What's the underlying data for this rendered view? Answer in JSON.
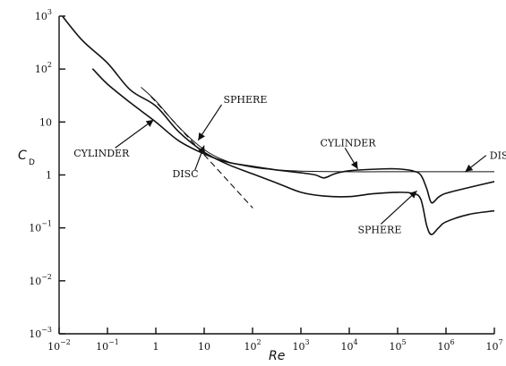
{
  "chart_data": {
    "type": "line",
    "xscale": "log",
    "yscale": "log",
    "xlim": [
      0.01,
      10000000
    ],
    "ylim": [
      0.001,
      1000
    ],
    "grid": false,
    "xlabel": "Re",
    "ylabel": "C",
    "ylabel_sub": "D",
    "x_ticks": [
      {
        "value": 0.01,
        "base": "10",
        "exp": "−2"
      },
      {
        "value": 0.1,
        "base": "10",
        "exp": "−1"
      },
      {
        "value": 1,
        "base": "1",
        "exp": ""
      },
      {
        "value": 10,
        "base": "10",
        "exp": ""
      },
      {
        "value": 100,
        "base": "10",
        "exp": "2"
      },
      {
        "value": 1000,
        "base": "10",
        "exp": "3"
      },
      {
        "value": 10000,
        "base": "10",
        "exp": "4"
      },
      {
        "value": 100000,
        "base": "10",
        "exp": "5"
      },
      {
        "value": 1000000,
        "base": "10",
        "exp": "6"
      },
      {
        "value": 10000000,
        "base": "10",
        "exp": "7"
      }
    ],
    "y_ticks": [
      {
        "value": 1000,
        "base": "10",
        "exp": "3"
      },
      {
        "value": 100,
        "base": "10",
        "exp": "2"
      },
      {
        "value": 10,
        "base": "10",
        "exp": ""
      },
      {
        "value": 1,
        "base": "1",
        "exp": ""
      },
      {
        "value": 0.1,
        "base": "10",
        "exp": "−1"
      },
      {
        "value": 0.01,
        "base": "10",
        "exp": "−2"
      },
      {
        "value": 0.001,
        "base": "10",
        "exp": "−3"
      }
    ],
    "series": [
      {
        "key": "sphere",
        "points": [
          [
            0.01,
            1200
          ],
          [
            0.03,
            350
          ],
          [
            0.1,
            130
          ],
          [
            0.3,
            40
          ],
          [
            1,
            20
          ],
          [
            3,
            6.5
          ],
          [
            10,
            2.7
          ],
          [
            30,
            1.6
          ],
          [
            100,
            1.05
          ],
          [
            300,
            0.72
          ],
          [
            1000,
            0.47
          ],
          [
            3000,
            0.4
          ],
          [
            10000,
            0.39
          ],
          [
            30000,
            0.44
          ],
          [
            100000,
            0.47
          ],
          [
            200000,
            0.45
          ],
          [
            300000,
            0.35
          ],
          [
            400000,
            0.11
          ],
          [
            500000,
            0.075
          ],
          [
            700000,
            0.1
          ],
          [
            1000000,
            0.13
          ],
          [
            3000000,
            0.18
          ],
          [
            10000000,
            0.21
          ]
        ]
      },
      {
        "key": "cylinder",
        "points": [
          [
            0.05,
            100
          ],
          [
            0.1,
            52
          ],
          [
            0.3,
            23
          ],
          [
            1,
            10
          ],
          [
            3,
            4.4
          ],
          [
            10,
            2.5
          ],
          [
            30,
            1.75
          ],
          [
            100,
            1.45
          ],
          [
            300,
            1.25
          ],
          [
            1000,
            1.1
          ],
          [
            2000,
            1.0
          ],
          [
            3000,
            0.88
          ],
          [
            5000,
            1.05
          ],
          [
            10000,
            1.2
          ],
          [
            50000,
            1.3
          ],
          [
            100000,
            1.3
          ],
          [
            200000,
            1.2
          ],
          [
            300000,
            1.0
          ],
          [
            400000,
            0.55
          ],
          [
            500000,
            0.3
          ],
          [
            700000,
            0.38
          ],
          [
            1000000,
            0.45
          ],
          [
            3000000,
            0.58
          ],
          [
            10000000,
            0.75
          ]
        ]
      },
      {
        "key": "disc",
        "points": [
          [
            0.5,
            45
          ],
          [
            1,
            25
          ],
          [
            3,
            8
          ],
          [
            10,
            3
          ],
          [
            30,
            1.8
          ],
          [
            100,
            1.4
          ],
          [
            300,
            1.25
          ],
          [
            1000,
            1.18
          ],
          [
            10000,
            1.15
          ],
          [
            100000,
            1.15
          ],
          [
            1000000,
            1.15
          ],
          [
            10000000,
            1.15
          ]
        ]
      },
      {
        "key": "stokes",
        "points": [
          [
            0.8,
            30
          ],
          [
            100,
            0.24
          ]
        ]
      }
    ],
    "annotations": [
      {
        "text": "SPHERE",
        "x": 25,
        "y": 23,
        "tip_x": 7.5,
        "tip_y": 4.5
      },
      {
        "text": "CYLINDER",
        "x": 0.02,
        "y": 2.2,
        "tip_x": 0.9,
        "tip_y": 11
      },
      {
        "text": "DISC",
        "x": 2.2,
        "y": 0.9,
        "tip_x": 10,
        "tip_y": 3.6
      },
      {
        "text": "CYLINDER",
        "x": 2500,
        "y": 3.5,
        "tip_x": 15000,
        "tip_y": 1.3
      },
      {
        "text": "DISC",
        "x": 8000000,
        "y": 2.0,
        "tip_x": 2500000,
        "tip_y": 1.15
      },
      {
        "text": "SPHERE",
        "x": 15000,
        "y": 0.08,
        "tip_x": 250000,
        "tip_y": 0.5
      }
    ]
  }
}
